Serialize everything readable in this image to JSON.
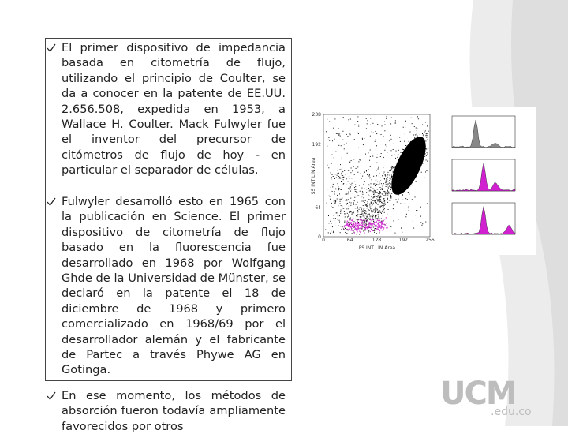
{
  "slide": {
    "bullets": [
      "El primer dispositivo de impedancia basada en citometría de flujo, utilizando el principio de Coulter, se da a conocer en la patente de EE.UU. 2.656.508, expedida en 1953, a Wallace H. Coulter. Mack Fulwyler fue el inventor del precursor de citómetros de flujo de hoy - en particular el separador de células.",
      "Fulwyler desarrolló esto en 1965 con la publicación en Science. El primer dispositivo de citometría de flujo basado en la fluorescencia fue desarrollado en 1968 por Wolfgang Ghde de la Universidad de Münster, se declaró en la patente el 18 de diciembre de 1968 y primero comercializado en 1968/69 por el desarrollador alemán y el fabricante de Partec a través Phywe AG en Gotinga.",
      "En ese momento, los métodos de absorción fueron todavía ampliamente favorecidos por otros"
    ],
    "figure": {
      "x_label": "FS INT LIN Area",
      "y_label": "SS INT LIN Area",
      "x_ticks": [
        "0",
        "64",
        "128",
        "192",
        "256"
      ],
      "y_ticks": [
        "0",
        "64",
        "192",
        "238"
      ]
    },
    "logo": {
      "name": "UCM",
      "domain": ".edu.co"
    }
  }
}
